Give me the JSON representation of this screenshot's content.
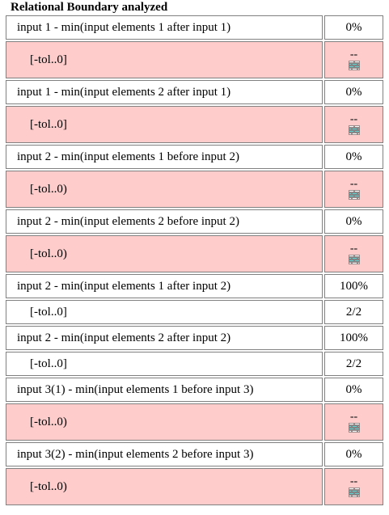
{
  "title": "Relational Boundary analyzed",
  "rows": [
    {
      "label": "input 1 - min(input elements 1 after input 1)",
      "value": "0%",
      "type": "header"
    },
    {
      "label": "[-tol..0]",
      "value": "--",
      "type": "sub",
      "missing": true,
      "icon": "brick-wall-icon"
    },
    {
      "label": "input 1 - min(input elements 2 after input 1)",
      "value": "0%",
      "type": "header"
    },
    {
      "label": "[-tol..0]",
      "value": "--",
      "type": "sub",
      "missing": true,
      "icon": "brick-wall-icon"
    },
    {
      "label": "input 2 - min(input elements 1 before input 2)",
      "value": "0%",
      "type": "header"
    },
    {
      "label": "[-tol..0)",
      "value": "--",
      "type": "sub",
      "missing": true,
      "icon": "brick-wall-icon"
    },
    {
      "label": "input 2 - min(input elements 2 before input 2)",
      "value": "0%",
      "type": "header"
    },
    {
      "label": "[-tol..0)",
      "value": "--",
      "type": "sub",
      "missing": true,
      "icon": "brick-wall-icon"
    },
    {
      "label": "input 2 - min(input elements 1 after input 2)",
      "value": "100%",
      "type": "header"
    },
    {
      "label": "[-tol..0]",
      "value": "2/2",
      "type": "sub",
      "missing": false
    },
    {
      "label": "input 2 - min(input elements 2 after input 2)",
      "value": "100%",
      "type": "header"
    },
    {
      "label": "[-tol..0]",
      "value": "2/2",
      "type": "sub",
      "missing": false
    },
    {
      "label": "input 3(1) - min(input elements 1 before input 3)",
      "value": "0%",
      "type": "header"
    },
    {
      "label": "[-tol..0)",
      "value": "--",
      "type": "sub",
      "missing": true,
      "icon": "brick-wall-icon"
    },
    {
      "label": "input 3(2) - min(input elements 2 before input 3)",
      "value": "0%",
      "type": "header"
    },
    {
      "label": "[-tol..0)",
      "value": "--",
      "type": "sub",
      "missing": true,
      "icon": "brick-wall-icon"
    }
  ],
  "colors": {
    "missing_bg": "#ffcccc",
    "border": "#808080",
    "brick": "#66cccc"
  }
}
